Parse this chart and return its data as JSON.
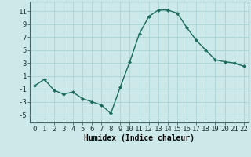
{
  "x": [
    0,
    1,
    2,
    3,
    4,
    5,
    6,
    7,
    8,
    9,
    10,
    11,
    12,
    13,
    14,
    15,
    16,
    17,
    18,
    19,
    20,
    21,
    22
  ],
  "y": [
    -0.5,
    0.5,
    -1.2,
    -1.8,
    -1.5,
    -2.5,
    -3.0,
    -3.5,
    -4.8,
    -0.7,
    3.2,
    7.5,
    10.2,
    11.2,
    11.2,
    10.7,
    8.5,
    6.5,
    5.0,
    3.5,
    3.2,
    3.0,
    2.5
  ],
  "line_color": "#1a6b5a",
  "marker": "D",
  "marker_size": 2.0,
  "bg_color": "#cce8e8",
  "grid_color": "#aad4d4",
  "xlabel": "Humidex (Indice chaleur)",
  "yticks": [
    -5,
    -3,
    -1,
    1,
    3,
    5,
    7,
    9,
    11
  ],
  "xlim": [
    -0.5,
    22.5
  ],
  "ylim": [
    -6.2,
    12.5
  ],
  "xlabel_fontsize": 7,
  "tick_fontsize": 6.5,
  "linewidth": 1.0
}
